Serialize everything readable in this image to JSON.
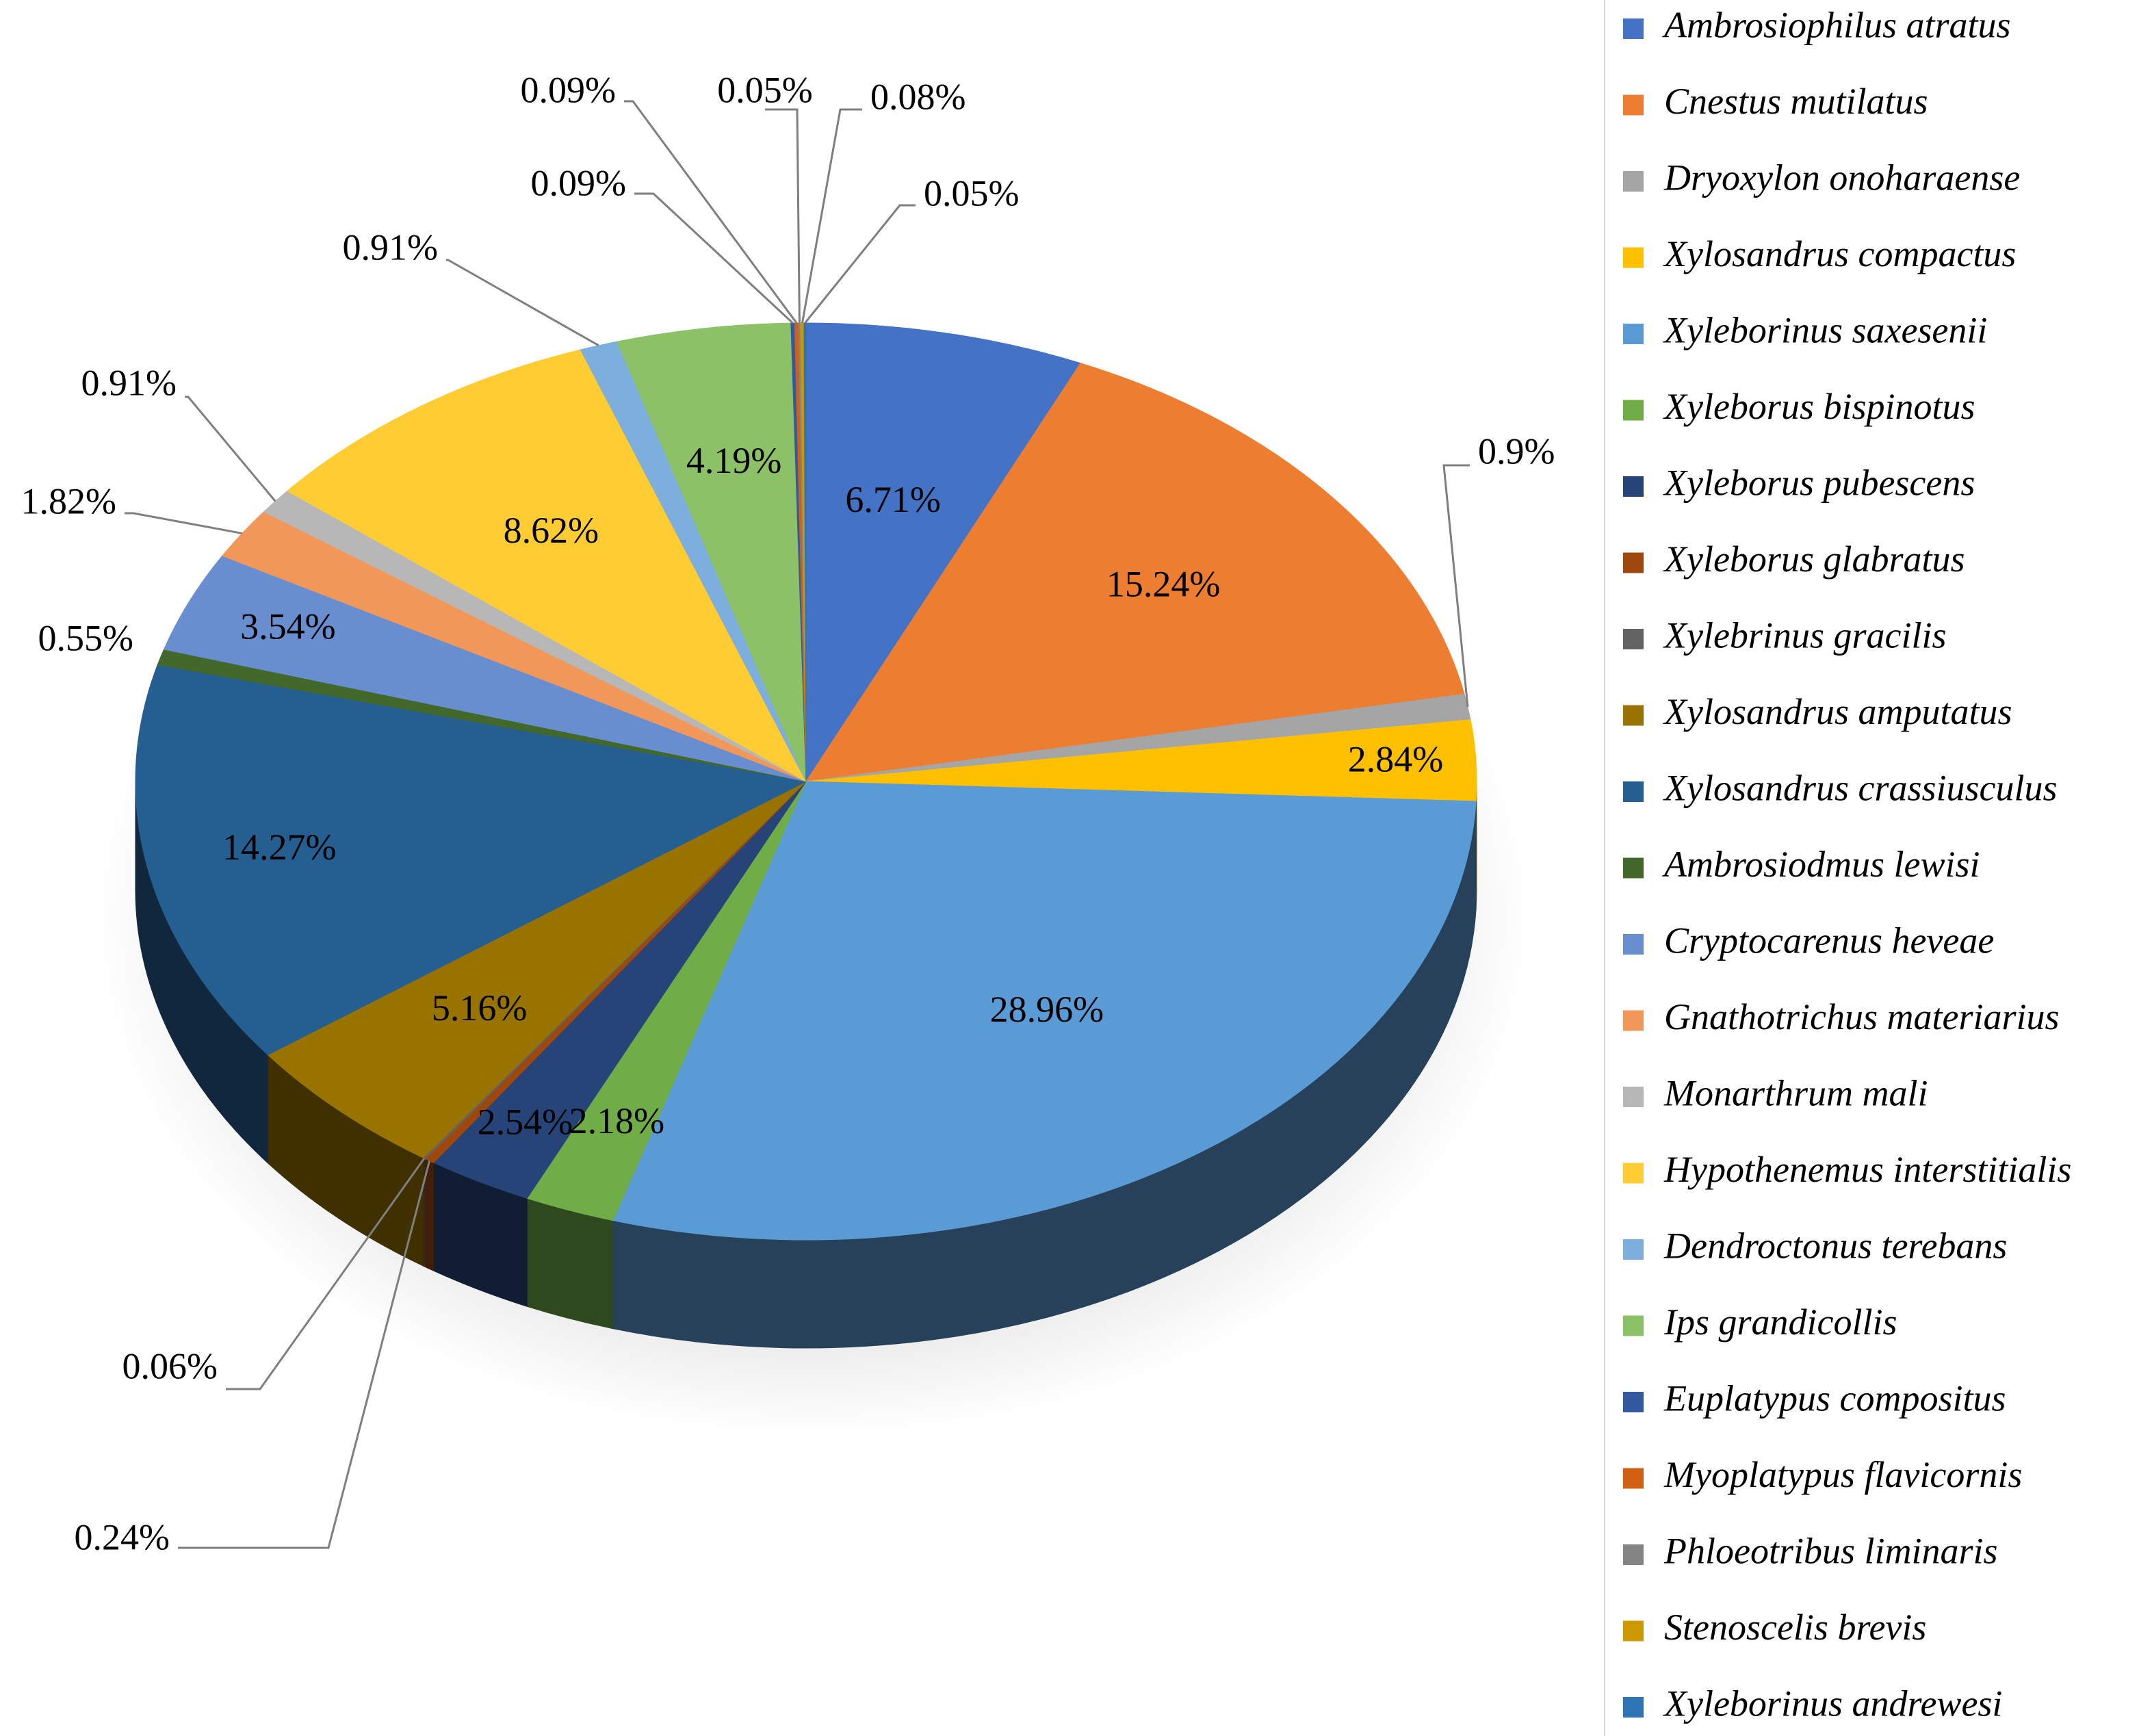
{
  "chart_data": {
    "type": "pie",
    "title": "",
    "slices": [
      {
        "name": "Ambrosiophilus atratus",
        "value": 6.71,
        "label": "6.71%",
        "color": "#4472c4"
      },
      {
        "name": "Cnestus mutilatus",
        "value": 15.24,
        "label": "15.24%",
        "color": "#ed7d31"
      },
      {
        "name": "Dryoxylon onoharaense",
        "value": 0.9,
        "label": "0.9%",
        "color": "#a5a5a5"
      },
      {
        "name": "Xylosandrus compactus",
        "value": 2.84,
        "label": "2.84%",
        "color": "#ffc000"
      },
      {
        "name": "Xyleborinus saxesenii",
        "value": 28.96,
        "label": "28.96%",
        "color": "#5b9bd5"
      },
      {
        "name": "Xyleborus bispinotus",
        "value": 2.18,
        "label": "2.18%",
        "color": "#70ad47"
      },
      {
        "name": "Xyleborus pubescens",
        "value": 2.54,
        "label": "2.54%",
        "color": "#264478"
      },
      {
        "name": "Xyleborus glabratus",
        "value": 0.24,
        "label": "0.24%",
        "color": "#9e480e"
      },
      {
        "name": "Xylebrinus gracilis",
        "value": 0.06,
        "label": "0.06%",
        "color": "#636363"
      },
      {
        "name": "Xylosandrus amputatus",
        "value": 5.16,
        "label": "5.16%",
        "color": "#997300"
      },
      {
        "name": "Xylosandrus crassiusculus",
        "value": 14.27,
        "label": "14.27%",
        "color": "#255e91"
      },
      {
        "name": "Ambrosiodmus lewisi",
        "value": 0.55,
        "label": "0.55%",
        "color": "#43682b"
      },
      {
        "name": "Cryptocarenus heveae",
        "value": 3.54,
        "label": "3.54%",
        "color": "#698ed0"
      },
      {
        "name": "Gnathotrichus materiarius",
        "value": 1.82,
        "label": "1.82%",
        "color": "#f1975a"
      },
      {
        "name": "Monarthrum mali",
        "value": 0.91,
        "label": "0.91%",
        "color": "#b7b7b7"
      },
      {
        "name": "Hypothenemus interstitialis",
        "value": 8.62,
        "label": "8.62%",
        "color": "#ffcd33"
      },
      {
        "name": "Dendroctonus terebans",
        "value": 0.91,
        "label": "0.91%",
        "color": "#7cafdd"
      },
      {
        "name": "Ips grandicollis",
        "value": 4.19,
        "label": "4.19%",
        "color": "#8cc168"
      },
      {
        "name": "Euplatypus compositus",
        "value": 0.09,
        "label": "0.09%",
        "color": "#335aa1"
      },
      {
        "name": "Myoplatypus flavicornis",
        "value": 0.09,
        "label": "0.09%",
        "color": "#d26012"
      },
      {
        "name": "Phloeotribus liminaris",
        "value": 0.05,
        "label": "0.05%",
        "color": "#848484"
      },
      {
        "name": "Stenoscelis brevis",
        "value": 0.08,
        "label": "0.08%",
        "color": "#cc9a00"
      },
      {
        "name": "Xyleborinus andrewesi",
        "value": 0.05,
        "label": "0.05%",
        "color": "#2e75b6"
      }
    ],
    "legend_position": "right",
    "style": "3d-pie"
  }
}
